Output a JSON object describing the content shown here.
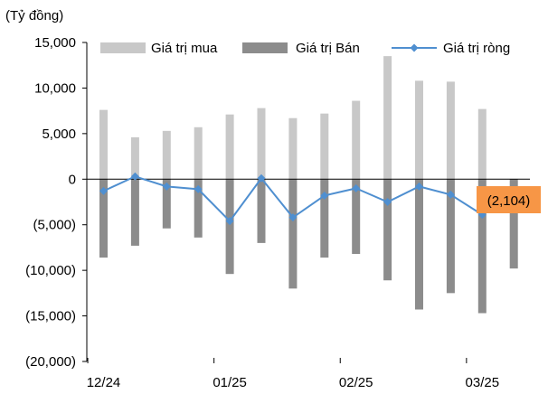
{
  "chart_data": {
    "type": "bar",
    "unit_label": "(Tỷ đồng)",
    "categories": [
      "12/24",
      "",
      "",
      "",
      "01/25",
      "",
      "",
      "",
      "02/25",
      "",
      "",
      "",
      "03/25",
      ""
    ],
    "tick_labels": [
      "12/24",
      "01/25",
      "02/25",
      "03/25"
    ],
    "ylim": [
      -20000,
      15000
    ],
    "y_ticks": [
      {
        "value": 15000,
        "label": "15,000"
      },
      {
        "value": 10000,
        "label": "10,000"
      },
      {
        "value": 5000,
        "label": "5,000"
      },
      {
        "value": 0,
        "label": "0"
      },
      {
        "value": -5000,
        "label": "(5,000)"
      },
      {
        "value": -10000,
        "label": "(10,000)"
      },
      {
        "value": -15000,
        "label": "(15,000)"
      },
      {
        "value": -20000,
        "label": "(20,000)"
      }
    ],
    "series": [
      {
        "name": "Giá trị mua",
        "kind": "bar",
        "color": "#c8c8c8",
        "values": [
          7600,
          4600,
          5300,
          5700,
          7100,
          7800,
          6700,
          7200,
          8600,
          13500,
          10800,
          10700,
          7700,
          null
        ]
      },
      {
        "name": "Giá trị Bán",
        "kind": "bar",
        "color": "#8c8c8c",
        "values": [
          -8600,
          -7300,
          -5400,
          -6400,
          -10400,
          -7000,
          -12000,
          -8600,
          -8200,
          -11100,
          -14300,
          -12500,
          -14700,
          -9800
        ]
      },
      {
        "name": "Giá trị ròng",
        "kind": "line",
        "color": "#4f8fd0",
        "values": [
          -1300,
          300,
          -800,
          -1100,
          -4600,
          100,
          -4200,
          -1800,
          -1000,
          -2500,
          -800,
          -1700,
          -3900,
          null
        ]
      }
    ],
    "annotation": {
      "text": "(2,104)",
      "index": 13,
      "color": "#f79646"
    },
    "legend_position": "top",
    "grid": false
  }
}
